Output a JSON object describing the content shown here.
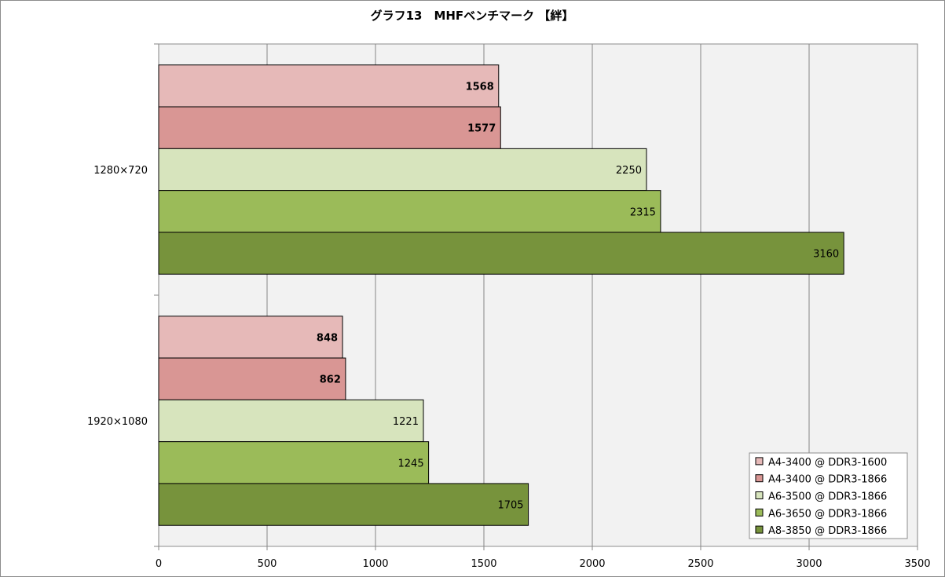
{
  "chart_data": {
    "type": "bar",
    "orientation": "horizontal",
    "title": "グラフ13　MHFベンチマーク 【絆】",
    "categories": [
      "1280×720",
      "1920×1080"
    ],
    "series": [
      {
        "name": "A4-3400 @ DDR3-1600",
        "color": "#e6b9b8",
        "values": [
          1568,
          848
        ],
        "label_bold": true
      },
      {
        "name": "A4-3400 @ DDR3-1866",
        "color": "#d99694",
        "values": [
          1577,
          862
        ],
        "label_bold": true
      },
      {
        "name": "A6-3500 @ DDR3-1866",
        "color": "#d7e4bd",
        "values": [
          2250,
          1221
        ],
        "label_bold": false
      },
      {
        "name": "A6-3650 @ DDR3-1866",
        "color": "#9bbb59",
        "values": [
          2315,
          1245
        ],
        "label_bold": false
      },
      {
        "name": "A8-3850 @ DDR3-1866",
        "color": "#77933c",
        "values": [
          3160,
          1705
        ],
        "label_bold": false
      }
    ],
    "xlim": [
      0,
      3500
    ],
    "xticks": [
      0,
      500,
      1000,
      1500,
      2000,
      2500,
      3000,
      3500
    ],
    "grid": true,
    "plot_background": "#f2f2f2",
    "legend_position": "bottom-right"
  }
}
